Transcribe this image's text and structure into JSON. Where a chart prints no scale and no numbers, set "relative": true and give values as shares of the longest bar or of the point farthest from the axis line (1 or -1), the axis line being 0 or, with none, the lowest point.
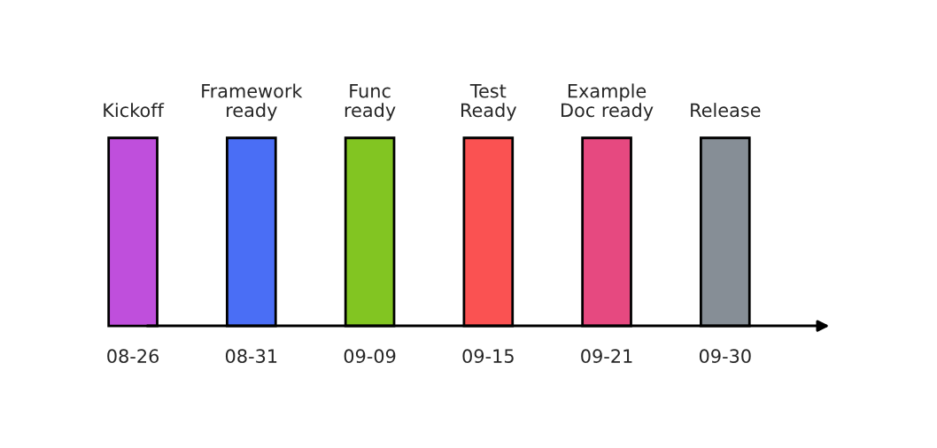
{
  "chart_data": {
    "type": "bar",
    "relative": true,
    "categories": [
      "08-26",
      "08-31",
      "09-09",
      "09-15",
      "09-21",
      "09-30"
    ],
    "values": [
      1,
      1,
      1,
      1,
      1,
      1
    ],
    "colors": [
      "#bf4fdc",
      "#4a6ef5",
      "#82c522",
      "#fa5252",
      "#e64980",
      "#868e96"
    ],
    "annotations": [
      {
        "text": "Kickoff",
        "x": "08-26",
        "y": 1
      },
      {
        "text": "Framework\nready",
        "x": "08-31",
        "y": 1
      },
      {
        "text": "Func\nready",
        "x": "09-09",
        "y": 1
      },
      {
        "text": "Test\nReady",
        "x": "09-15",
        "y": 1
      },
      {
        "text": "Example\nDoc ready",
        "x": "09-21",
        "y": 1
      },
      {
        "text": "Release",
        "x": "09-30",
        "y": 1
      }
    ],
    "grid": false,
    "legend": false
  }
}
